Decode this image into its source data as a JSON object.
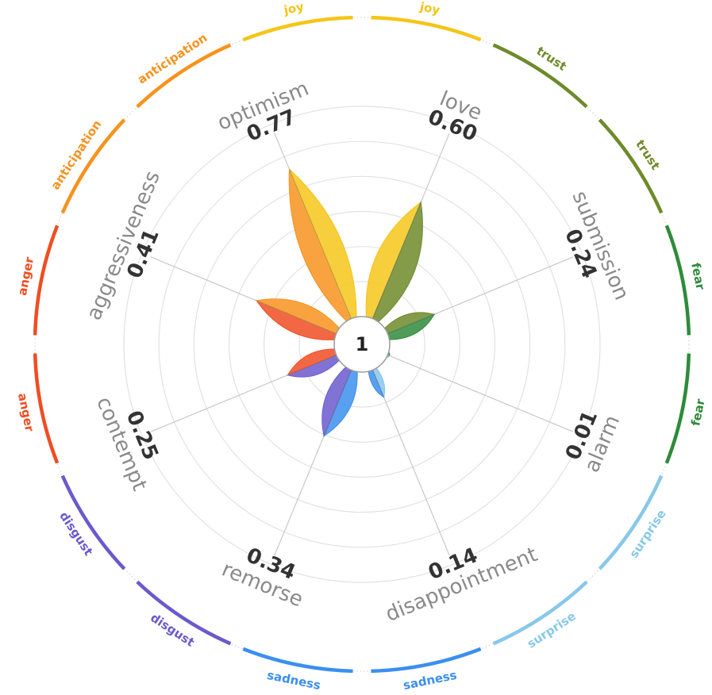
{
  "chart_data": {
    "type": "radial-petal",
    "center_label": "1",
    "colors": {
      "joy": "#f5c518",
      "trust": "#6e8a2a",
      "fear": "#2e8b3a",
      "surprise": "#87c8ea",
      "sadness": "#3b8fef",
      "disgust": "#6a5acd",
      "anger": "#f04d22",
      "anticipation": "#f7921e"
    },
    "dyads": [
      {
        "name": "love",
        "value": 0.6,
        "display": "0.60",
        "emotions": [
          "joy",
          "trust"
        ]
      },
      {
        "name": "submission",
        "value": 0.24,
        "display": "0.24",
        "emotions": [
          "trust",
          "fear"
        ]
      },
      {
        "name": "alarm",
        "value": 0.01,
        "display": "0.01",
        "emotions": [
          "fear",
          "surprise"
        ]
      },
      {
        "name": "disappointment",
        "value": 0.14,
        "display": "0.14",
        "emotions": [
          "surprise",
          "sadness"
        ]
      },
      {
        "name": "remorse",
        "value": 0.34,
        "display": "0.34",
        "emotions": [
          "sadness",
          "disgust"
        ]
      },
      {
        "name": "contempt",
        "value": 0.25,
        "display": "0.25",
        "emotions": [
          "disgust",
          "anger"
        ]
      },
      {
        "name": "aggressiveness",
        "value": 0.41,
        "display": "0.41",
        "emotions": [
          "anger",
          "anticipation"
        ]
      },
      {
        "name": "optimism",
        "value": 0.77,
        "display": "0.77",
        "emotions": [
          "anticipation",
          "joy"
        ]
      }
    ]
  }
}
